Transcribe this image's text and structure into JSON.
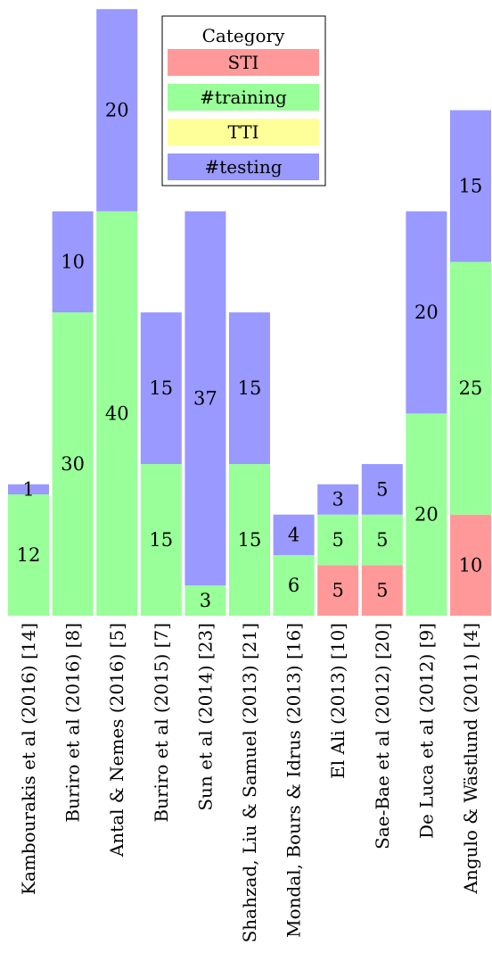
{
  "chart_data": {
    "type": "bar",
    "stacked": true,
    "categories": [
      "Kambourakis et al (2016) [14]",
      "Buriro et al (2016) [8]",
      "Antal & Nemes (2016) [5]",
      "Buriro et al (2015) [7]",
      "Sun et al (2014) [23]",
      "Shahzad, Liu & Samuel (2013) [21]",
      "Mondal, Bours & Idrus (2013) [16]",
      "El Ali (2013) [10]",
      "Sae-Bae et al (2012) [20]",
      "De Luca et al (2012) [9]",
      "Angulo & Wästlund (2011) [4]"
    ],
    "series": [
      {
        "name": "STI",
        "color": "#ff9999",
        "values": [
          0,
          0,
          0,
          0,
          0,
          0,
          0,
          5,
          5,
          0,
          10
        ]
      },
      {
        "name": "#training",
        "color": "#99ff99",
        "values": [
          12,
          30,
          40,
          15,
          3,
          15,
          6,
          5,
          5,
          20,
          25
        ]
      },
      {
        "name": "TTI",
        "color": "#ffff99",
        "values": [
          0,
          0,
          0,
          0,
          0,
          0,
          0,
          0,
          0,
          0,
          0
        ]
      },
      {
        "name": "#testing",
        "color": "#9999ff",
        "values": [
          1,
          10,
          20,
          15,
          37,
          15,
          4,
          3,
          5,
          20,
          15
        ]
      }
    ],
    "legend": {
      "title": "Category",
      "position": "top-center"
    },
    "ylim": [
      0,
      60
    ],
    "grid": false
  }
}
